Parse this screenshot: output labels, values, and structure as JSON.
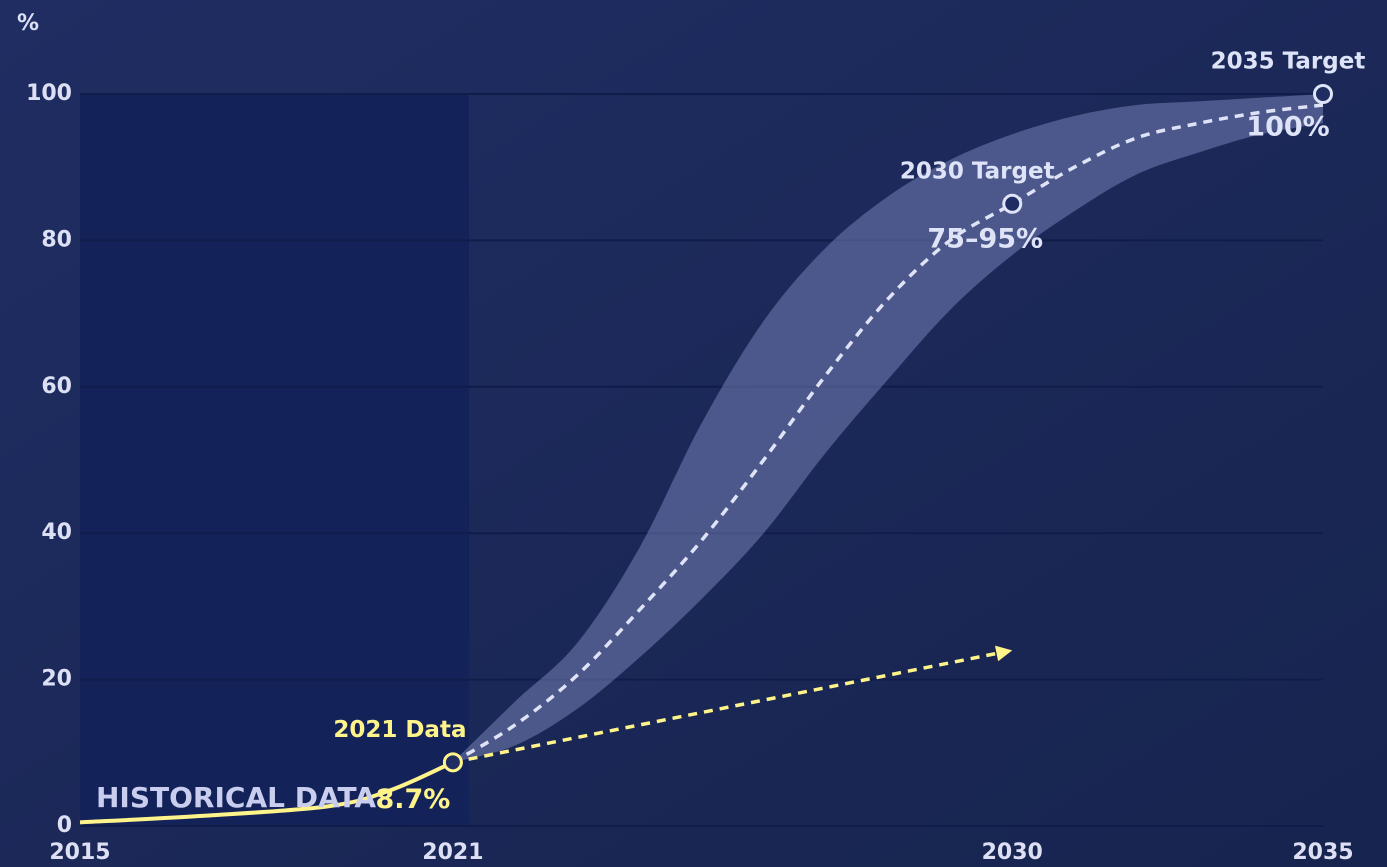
{
  "chart_data": {
    "type": "line",
    "y_label": "%",
    "xlim": [
      2015,
      2035
    ],
    "ylim": [
      0,
      100
    ],
    "xticks": [
      2015,
      2021,
      2030,
      2035
    ],
    "yticks": [
      0,
      20,
      40,
      60,
      80,
      100
    ],
    "grid": true,
    "historical_label": "HISTORICAL DATA",
    "historical_span": [
      2015,
      2021
    ],
    "band": {
      "color": "#8a93c9",
      "x": [
        2021,
        2022,
        2023,
        2024,
        2025,
        2026,
        2027,
        2028,
        2029,
        2030,
        2031,
        2032,
        2033,
        2034,
        2035
      ],
      "upper": [
        8.7,
        17,
        25,
        38,
        55,
        69,
        79,
        86,
        91,
        94.5,
        97,
        98.5,
        99,
        99.5,
        100
      ],
      "lower": [
        8.7,
        11,
        16,
        23,
        31,
        40,
        51,
        61,
        70.5,
        78,
        84,
        89,
        92,
        94.5,
        96
      ]
    },
    "series": [
      {
        "color": "#fff48a",
        "style": "solid",
        "x": [
          2015,
          2017,
          2019,
          2020,
          2021
        ],
        "values": [
          0.5,
          1.4,
          2.7,
          4.9,
          8.7
        ]
      },
      {
        "color": "#dfe3f7",
        "style": "dashed",
        "x": [
          2021,
          2022,
          2023,
          2024,
          2025,
          2026,
          2027,
          2028,
          2029,
          2030,
          2031,
          2032,
          2033,
          2034,
          2035
        ],
        "values": [
          8.7,
          13.8,
          20.6,
          29.5,
          39,
          50,
          61.6,
          72,
          80,
          85,
          90,
          94,
          96,
          97.5,
          98.5
        ]
      },
      {
        "color": "#fff48a",
        "style": "arrow",
        "x": [
          2021,
          2030
        ],
        "values": [
          8.7,
          24
        ]
      }
    ],
    "annotations": [
      {
        "label": "2021 Data",
        "value_label": "8.7%",
        "x": 2021,
        "y": 8.7,
        "color": "#fff48a"
      },
      {
        "label": "2030 Target",
        "value_label": "75–95%",
        "x": 2030,
        "y": 85,
        "color": "#dfe3f7"
      },
      {
        "label": "2035 Target",
        "value_label": "100%",
        "x": 2035,
        "y": 100,
        "color": "#dfe3f7"
      }
    ]
  }
}
